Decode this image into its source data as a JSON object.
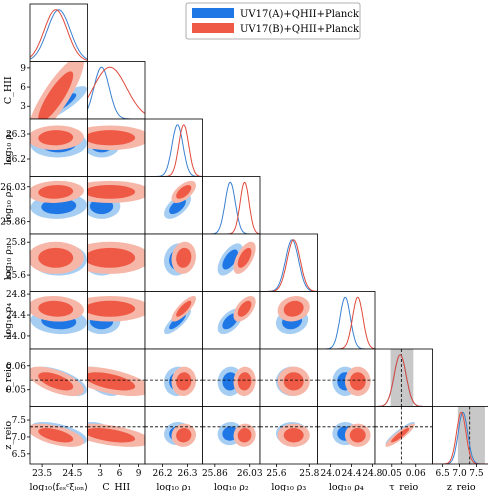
{
  "chart_data": {
    "type": "corner",
    "legend_position": "top-center",
    "series": [
      {
        "name": "UV17(A)+QHII+Planck",
        "color_dark": "#1f77e6",
        "color_light": "#a6cdf2",
        "line_color": "#3a80d0"
      },
      {
        "name": "UV17(B)+QHII+Planck",
        "color_dark": "#ee5a45",
        "color_light": "#f6b7a9",
        "line_color": "#e0493a"
      }
    ],
    "parameters": [
      {
        "label": "log₁₀⟨fₑₛᶜξᵢₒₙ⟩",
        "range": [
          23.1,
          25.0
        ],
        "ticks": [
          23.5,
          24.5
        ],
        "tick_labels": [
          "23.5",
          "24.5"
        ],
        "mean": [
          24.05,
          23.95
        ],
        "sd": [
          0.38,
          0.38
        ]
      },
      {
        "label": "C_HII",
        "range": [
          1,
          10
        ],
        "ticks": [
          3,
          6,
          9
        ],
        "tick_labels": [
          "3",
          "6",
          "9"
        ],
        "mean": [
          3.2,
          4.5
        ],
        "sd": [
          1.2,
          2.6
        ]
      },
      {
        "label": "log₁₀ ρ₁",
        "range": [
          26.13,
          26.36
        ],
        "ticks": [
          26.2,
          26.3
        ],
        "tick_labels": [
          "26.2",
          "26.3"
        ],
        "mean": [
          26.26,
          26.285
        ],
        "sd": [
          0.022,
          0.02
        ]
      },
      {
        "label": "log₁₀ ρ₂",
        "range": [
          25.8,
          26.08
        ],
        "ticks": [
          25.86,
          26.03
        ],
        "tick_labels": [
          "25.86",
          "26.03"
        ],
        "mean": [
          25.935,
          26.005
        ],
        "sd": [
          0.025,
          0.022
        ]
      },
      {
        "label": "log₁₀ ρ₃",
        "range": [
          25.5,
          25.85
        ],
        "ticks": [
          25.6,
          25.8
        ],
        "tick_labels": [
          "25.6",
          "25.8"
        ],
        "mean": [
          25.695,
          25.705
        ],
        "sd": [
          0.04,
          0.04
        ]
      },
      {
        "label": "log₁₀ ρ₄",
        "range": [
          23.75,
          24.85
        ],
        "ticks": [
          24.0,
          24.4,
          24.8
        ],
        "tick_labels": [
          "24.0",
          "24.4",
          "24.8"
        ],
        "mean": [
          24.28,
          24.52
        ],
        "sd": [
          0.1,
          0.1
        ]
      },
      {
        "label": "τ_reio",
        "range": [
          0.043,
          0.067
        ],
        "ticks": [
          0.05,
          0.06
        ],
        "tick_labels": [
          "0.05",
          "0.06"
        ],
        "mean": [
          0.0535,
          0.0535
        ],
        "sd": [
          0.0025,
          0.0025
        ],
        "band": [
          0.0495,
          0.059
        ],
        "ref": 0.054
      },
      {
        "label": "z_reio",
        "range": [
          6.2,
          7.9
        ],
        "ticks": [
          6.5,
          7.0,
          7.5
        ],
        "tick_labels": [
          "6.5",
          "7.0",
          "7.5"
        ],
        "mean": [
          7.1,
          7.05
        ],
        "sd": [
          0.14,
          0.14
        ],
        "band": [
          6.95,
          7.75
        ],
        "ref": 7.3
      }
    ],
    "correlations": [
      [
        1,
        0.85,
        0.05,
        0.1,
        0.0,
        -0.1,
        -0.6,
        -0.55
      ],
      [
        0.85,
        1,
        0.0,
        0.0,
        0.0,
        0.0,
        -0.55,
        -0.5
      ],
      [
        0.05,
        0.0,
        1,
        0.6,
        0.1,
        0.8,
        0.05,
        0.05
      ],
      [
        0.1,
        0.0,
        0.6,
        1,
        0.6,
        0.55,
        0.05,
        0.05
      ],
      [
        0.0,
        0.0,
        0.1,
        0.6,
        1,
        0.15,
        0.0,
        0.0
      ],
      [
        -0.1,
        0.0,
        0.8,
        0.55,
        0.15,
        1,
        0.0,
        0.0
      ],
      [
        -0.6,
        -0.55,
        0.05,
        0.05,
        0.0,
        0.0,
        1,
        0.9
      ],
      [
        -0.55,
        -0.5,
        0.05,
        0.05,
        0.0,
        0.0,
        0.9,
        1
      ]
    ]
  }
}
